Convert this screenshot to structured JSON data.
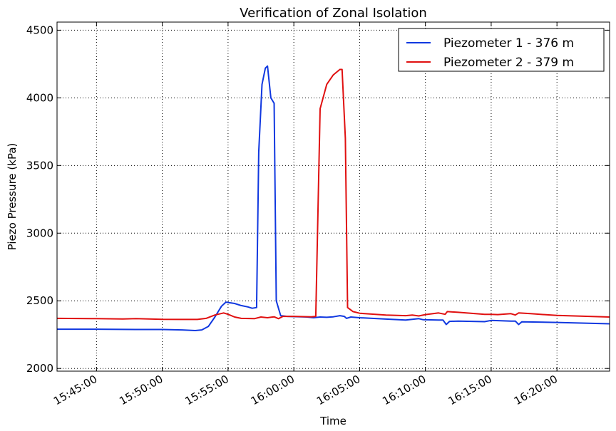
{
  "chart_data": {
    "type": "line",
    "title": "Verification of Zonal Isolation",
    "xlabel": "Time",
    "ylabel": "Piezo Pressure (kPa)",
    "xlim": [
      "15:42:00",
      "16:24:00"
    ],
    "ylim": [
      1980,
      4560
    ],
    "x_ticks": [
      "15:45:00",
      "15:50:00",
      "15:55:00",
      "16:00:00",
      "16:05:00",
      "16:10:00",
      "16:15:00",
      "16:20:00"
    ],
    "y_ticks": [
      2000,
      2500,
      3000,
      3500,
      4000,
      4500
    ],
    "grid": true,
    "legend_position": "top-right",
    "series": [
      {
        "name": "Piezometer 1 - 376 m",
        "color": "#1038e0",
        "points": [
          [
            "15:42:00",
            2290
          ],
          [
            "15:45:00",
            2290
          ],
          [
            "15:48:00",
            2288
          ],
          [
            "15:50:00",
            2288
          ],
          [
            "15:51:30",
            2285
          ],
          [
            "15:52:30",
            2280
          ],
          [
            "15:53:00",
            2285
          ],
          [
            "15:53:30",
            2310
          ],
          [
            "15:54:00",
            2380
          ],
          [
            "15:54:30",
            2460
          ],
          [
            "15:54:50",
            2490
          ],
          [
            "15:55:30",
            2480
          ],
          [
            "15:56:00",
            2465
          ],
          [
            "15:56:30",
            2455
          ],
          [
            "15:56:50",
            2445
          ],
          [
            "15:57:10",
            2450
          ],
          [
            "15:57:20",
            3600
          ],
          [
            "15:57:35",
            4100
          ],
          [
            "15:57:50",
            4220
          ],
          [
            "15:58:00",
            4235
          ],
          [
            "15:58:15",
            4000
          ],
          [
            "15:58:30",
            3960
          ],
          [
            "15:58:40",
            2500
          ],
          [
            "15:59:00",
            2390
          ],
          [
            "15:59:30",
            2385
          ],
          [
            "16:01:00",
            2380
          ],
          [
            "16:01:30",
            2375
          ],
          [
            "16:02:00",
            2380
          ],
          [
            "16:02:30",
            2378
          ],
          [
            "16:03:00",
            2382
          ],
          [
            "16:03:30",
            2390
          ],
          [
            "16:03:50",
            2385
          ],
          [
            "16:04:00",
            2370
          ],
          [
            "16:04:20",
            2380
          ],
          [
            "16:05:00",
            2375
          ],
          [
            "16:07:00",
            2365
          ],
          [
            "16:08:30",
            2358
          ],
          [
            "16:09:30",
            2368
          ],
          [
            "16:09:50",
            2360
          ],
          [
            "16:11:00",
            2358
          ],
          [
            "16:11:20",
            2358
          ],
          [
            "16:11:35",
            2325
          ],
          [
            "16:11:50",
            2348
          ],
          [
            "16:12:30",
            2350
          ],
          [
            "16:14:30",
            2346
          ],
          [
            "16:15:00",
            2355
          ],
          [
            "16:16:30",
            2350
          ],
          [
            "16:16:50",
            2350
          ],
          [
            "16:17:05",
            2325
          ],
          [
            "16:17:20",
            2345
          ],
          [
            "16:20:00",
            2340
          ],
          [
            "16:24:00",
            2330
          ]
        ]
      },
      {
        "name": "Piezometer 2 - 379 m",
        "color": "#e01010",
        "points": [
          [
            "15:42:00",
            2370
          ],
          [
            "15:45:00",
            2368
          ],
          [
            "15:47:00",
            2366
          ],
          [
            "15:48:00",
            2368
          ],
          [
            "15:50:00",
            2363
          ],
          [
            "15:52:00",
            2362
          ],
          [
            "15:52:40",
            2362
          ],
          [
            "15:53:20",
            2370
          ],
          [
            "15:54:00",
            2395
          ],
          [
            "15:54:40",
            2410
          ],
          [
            "15:55:00",
            2400
          ],
          [
            "15:55:30",
            2380
          ],
          [
            "15:56:00",
            2370
          ],
          [
            "15:57:00",
            2368
          ],
          [
            "15:57:30",
            2380
          ],
          [
            "15:58:00",
            2375
          ],
          [
            "15:58:30",
            2382
          ],
          [
            "15:58:50",
            2368
          ],
          [
            "15:59:10",
            2385
          ],
          [
            "16:00:00",
            2385
          ],
          [
            "16:01:20",
            2382
          ],
          [
            "16:01:40",
            2385
          ],
          [
            "16:02:00",
            3920
          ],
          [
            "16:02:30",
            4100
          ],
          [
            "16:03:00",
            4170
          ],
          [
            "16:03:30",
            4210
          ],
          [
            "16:03:40",
            4210
          ],
          [
            "16:03:55",
            3700
          ],
          [
            "16:04:05",
            2450
          ],
          [
            "16:04:30",
            2420
          ],
          [
            "16:05:00",
            2408
          ],
          [
            "16:07:00",
            2395
          ],
          [
            "16:08:30",
            2390
          ],
          [
            "16:09:00",
            2395
          ],
          [
            "16:09:30",
            2388
          ],
          [
            "16:10:00",
            2398
          ],
          [
            "16:11:00",
            2410
          ],
          [
            "16:11:30",
            2400
          ],
          [
            "16:11:40",
            2420
          ],
          [
            "16:12:30",
            2415
          ],
          [
            "16:14:30",
            2400
          ],
          [
            "16:15:00",
            2400
          ],
          [
            "16:15:30",
            2398
          ],
          [
            "16:16:30",
            2405
          ],
          [
            "16:16:50",
            2395
          ],
          [
            "16:17:05",
            2410
          ],
          [
            "16:18:00",
            2405
          ],
          [
            "16:20:00",
            2392
          ],
          [
            "16:24:00",
            2380
          ]
        ]
      }
    ]
  }
}
